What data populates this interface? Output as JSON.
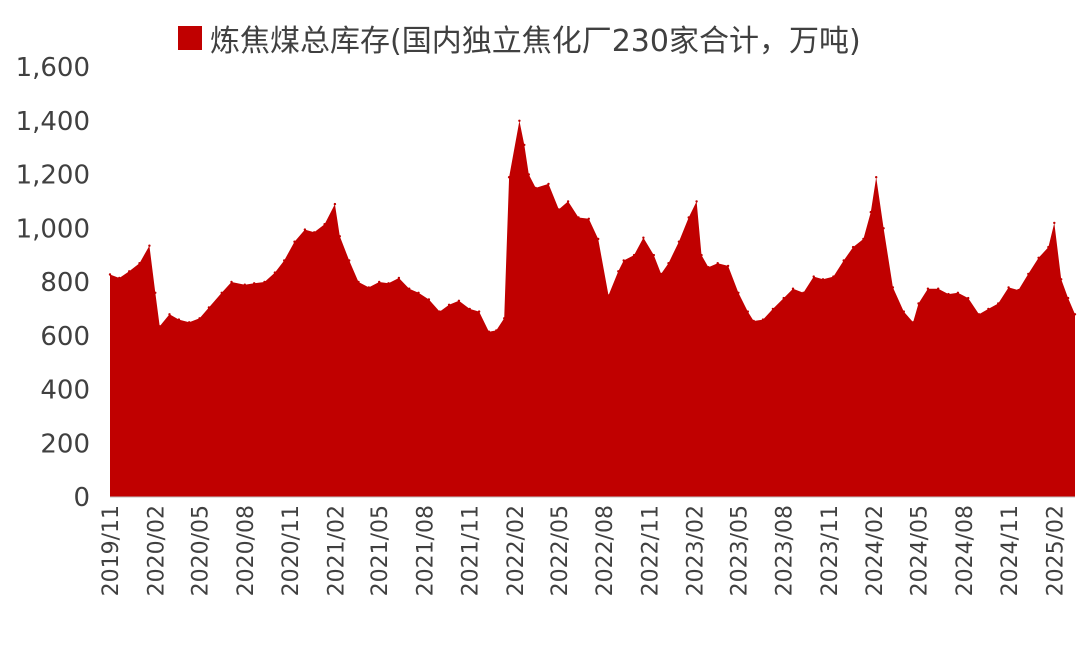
{
  "chart_data": {
    "type": "area",
    "series": [
      {
        "name": "炼焦煤总库存(国内独立焦化厂230家合计，万吨)"
      }
    ],
    "ylim": [
      0,
      1600
    ],
    "yticks": [
      "0",
      "200",
      "400",
      "600",
      "800",
      "1,000",
      "1,200",
      "1,400",
      "1,600"
    ],
    "xticks": [
      "2019/11",
      "2020/02",
      "2020/05",
      "2020/08",
      "2020/11",
      "2021/02",
      "2021/05",
      "2021/08",
      "2021/11",
      "2022/02",
      "2022/05",
      "2022/08",
      "2022/11",
      "2023/02",
      "2023/05",
      "2023/08",
      "2023/11",
      "2024/02",
      "2024/05",
      "2024/08",
      "2024/11",
      "2025/02"
    ],
    "points": [
      [
        "2019/11/01",
        828
      ],
      [
        "2019/11/20",
        815
      ],
      [
        "2019/12/10",
        840
      ],
      [
        "2019/12/31",
        870
      ],
      [
        "2020/01/20",
        935
      ],
      [
        "2020/02/01",
        760
      ],
      [
        "2020/02/10",
        635
      ],
      [
        "2020/03/01",
        680
      ],
      [
        "2020/03/20",
        660
      ],
      [
        "2020/04/10",
        650
      ],
      [
        "2020/05/01",
        665
      ],
      [
        "2020/05/20",
        705
      ],
      [
        "2020/06/15",
        760
      ],
      [
        "2020/07/05",
        800
      ],
      [
        "2020/08/01",
        790
      ],
      [
        "2020/08/20",
        795
      ],
      [
        "2020/09/10",
        800
      ],
      [
        "2020/10/01",
        835
      ],
      [
        "2020/10/20",
        880
      ],
      [
        "2020/11/10",
        950
      ],
      [
        "2020/12/01",
        995
      ],
      [
        "2020/12/20",
        985
      ],
      [
        "2021/01/10",
        1015
      ],
      [
        "2021/01/31",
        1090
      ],
      [
        "2021/02/10",
        970
      ],
      [
        "2021/03/01",
        880
      ],
      [
        "2021/03/20",
        800
      ],
      [
        "2021/04/10",
        780
      ],
      [
        "2021/05/01",
        800
      ],
      [
        "2021/05/20",
        795
      ],
      [
        "2021/06/10",
        815
      ],
      [
        "2021/07/01",
        775
      ],
      [
        "2021/07/20",
        760
      ],
      [
        "2021/08/10",
        735
      ],
      [
        "2021/09/01",
        690
      ],
      [
        "2021/09/20",
        715
      ],
      [
        "2021/10/10",
        730
      ],
      [
        "2021/11/01",
        700
      ],
      [
        "2021/11/20",
        690
      ],
      [
        "2021/12/10",
        615
      ],
      [
        "2021/12/25",
        620
      ],
      [
        "2022/01/10",
        665
      ],
      [
        "2022/01/20",
        1190
      ],
      [
        "2022/02/10",
        1400
      ],
      [
        "2022/02/20",
        1310
      ],
      [
        "2022/03/01",
        1200
      ],
      [
        "2022/03/15",
        1150
      ],
      [
        "2022/04/10",
        1165
      ],
      [
        "2022/05/01",
        1070
      ],
      [
        "2022/05/20",
        1100
      ],
      [
        "2022/06/10",
        1040
      ],
      [
        "2022/07/01",
        1035
      ],
      [
        "2022/07/20",
        960
      ],
      [
        "2022/08/10",
        750
      ],
      [
        "2022/08/30",
        840
      ],
      [
        "2022/09/10",
        880
      ],
      [
        "2022/10/01",
        900
      ],
      [
        "2022/10/20",
        965
      ],
      [
        "2022/11/10",
        900
      ],
      [
        "2022/11/25",
        830
      ],
      [
        "2022/12/10",
        870
      ],
      [
        "2022/12/31",
        950
      ],
      [
        "2023/01/20",
        1040
      ],
      [
        "2023/02/05",
        1100
      ],
      [
        "2023/02/15",
        900
      ],
      [
        "2023/03/01",
        855
      ],
      [
        "2023/03/20",
        870
      ],
      [
        "2023/04/10",
        860
      ],
      [
        "2023/05/01",
        760
      ],
      [
        "2023/05/20",
        690
      ],
      [
        "2023/06/01",
        655
      ],
      [
        "2023/06/20",
        660
      ],
      [
        "2023/07/10",
        700
      ],
      [
        "2023/08/01",
        740
      ],
      [
        "2023/08/20",
        775
      ],
      [
        "2023/09/10",
        760
      ],
      [
        "2023/10/01",
        820
      ],
      [
        "2023/10/20",
        810
      ],
      [
        "2023/11/10",
        820
      ],
      [
        "2023/12/01",
        880
      ],
      [
        "2023/12/20",
        930
      ],
      [
        "2024/01/10",
        960
      ],
      [
        "2024/01/25",
        1060
      ],
      [
        "2024/02/05",
        1190
      ],
      [
        "2024/02/20",
        1000
      ],
      [
        "2024/03/10",
        780
      ],
      [
        "2024/04/01",
        690
      ],
      [
        "2024/04/20",
        650
      ],
      [
        "2024/05/01",
        720
      ],
      [
        "2024/05/20",
        775
      ],
      [
        "2024/06/10",
        775
      ],
      [
        "2024/07/01",
        755
      ],
      [
        "2024/07/20",
        760
      ],
      [
        "2024/08/10",
        740
      ],
      [
        "2024/09/01",
        680
      ],
      [
        "2024/09/20",
        700
      ],
      [
        "2024/10/10",
        720
      ],
      [
        "2024/10/31",
        780
      ],
      [
        "2024/11/20",
        770
      ],
      [
        "2024/12/10",
        830
      ],
      [
        "2024/12/31",
        890
      ],
      [
        "2025/01/20",
        930
      ],
      [
        "2025/02/01",
        1020
      ],
      [
        "2025/02/15",
        810
      ],
      [
        "2025/03/01",
        740
      ],
      [
        "2025/03/15",
        680
      ]
    ],
    "legend_position": "top",
    "grid": false,
    "colors": {
      "area": "#C00000",
      "axis": "#404040"
    }
  }
}
